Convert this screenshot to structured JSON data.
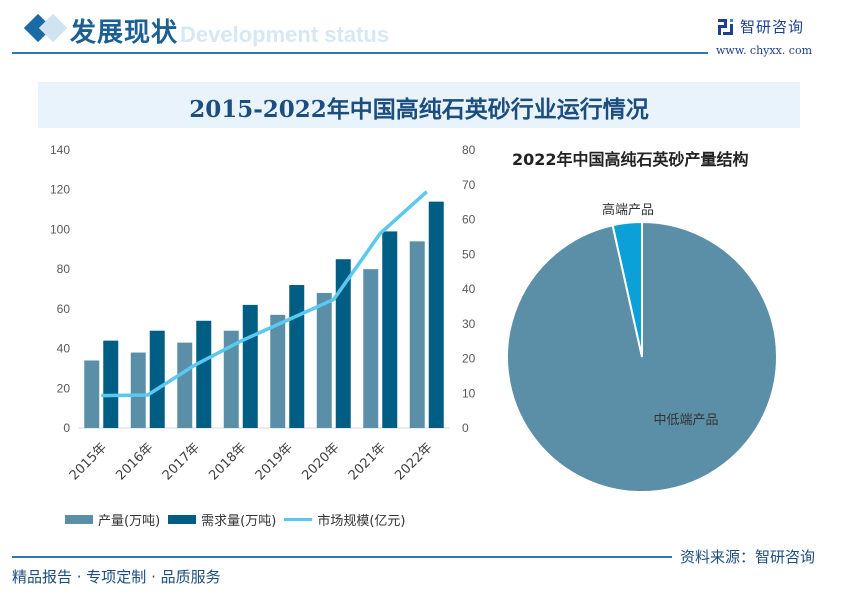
{
  "header": {
    "section_title": "发展现状",
    "section_subtitle": "Development status",
    "brand_name": "智研咨询",
    "brand_url": "www. chyxx. com"
  },
  "main_title": "2015-2022年中国高纯石英砂行业运行情况",
  "chart_data": [
    {
      "type": "bar",
      "title": "2015-2022年中国高纯石英砂行业运行情况",
      "categories": [
        "2015年",
        "2016年",
        "2017年",
        "2018年",
        "2019年",
        "2020年",
        "2021年",
        "2022年"
      ],
      "series": [
        {
          "name": "产量(万吨)",
          "kind": "bar",
          "axis": "left",
          "color": "#5b8fa8",
          "values": [
            34,
            38,
            43,
            49,
            57,
            68,
            80,
            94
          ]
        },
        {
          "name": "需求量(万吨)",
          "kind": "bar",
          "axis": "left",
          "color": "#005e84",
          "values": [
            44,
            49,
            54,
            62,
            72,
            85,
            99,
            114
          ]
        },
        {
          "name": "市场规模(亿元)",
          "kind": "line",
          "axis": "right",
          "color": "#5bc8f0",
          "values": [
            9.3,
            9.5,
            18,
            25,
            31,
            37,
            56,
            68
          ]
        }
      ],
      "left_axis": {
        "ylim": [
          0,
          140
        ],
        "ticks": [
          "0",
          "20",
          "40",
          "60",
          "80",
          "100",
          "120",
          "140"
        ]
      },
      "right_axis": {
        "ylim": [
          0,
          80
        ],
        "ticks": [
          "0",
          "10",
          "20",
          "30",
          "40",
          "50",
          "60",
          "70",
          "80"
        ]
      },
      "legend": "bottom",
      "grid": false
    },
    {
      "type": "pie",
      "title": "2022年中国高纯石英砂产量结构",
      "slices": [
        {
          "label": "高端产品",
          "value": 3.5,
          "color": "#0ba0d8"
        },
        {
          "label": "中低端产品",
          "value": 96.5,
          "color": "#5b8fa8"
        }
      ]
    }
  ],
  "footer": {
    "source": "资料来源：智研咨询",
    "slogan": "精品报告 · 专项定制 · 品质服务"
  }
}
